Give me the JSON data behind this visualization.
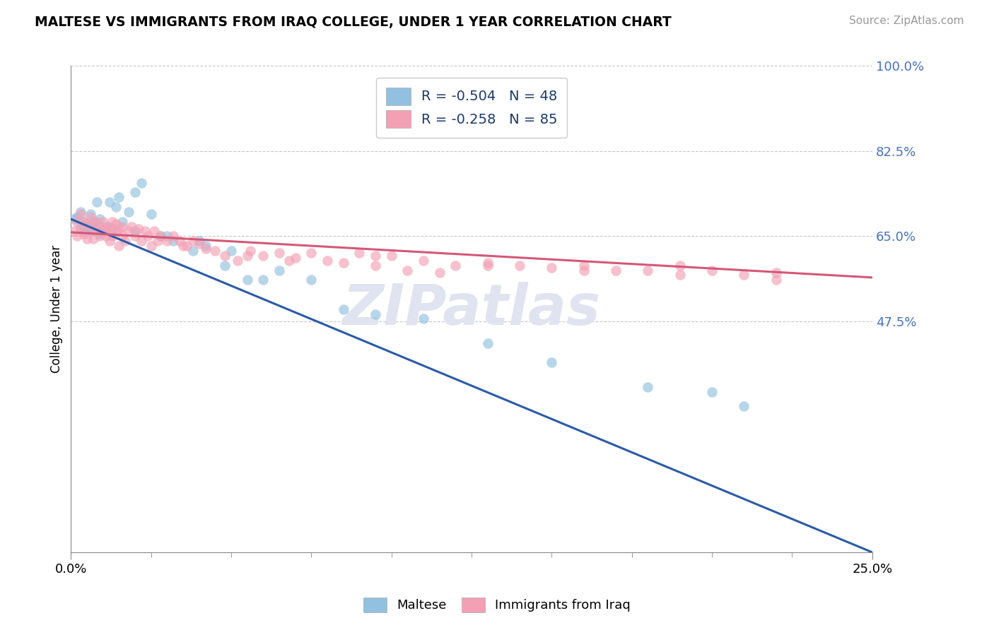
{
  "title": "MALTESE VS IMMIGRANTS FROM IRAQ COLLEGE, UNDER 1 YEAR CORRELATION CHART",
  "source_text": "Source: ZipAtlas.com",
  "ylabel_label": "College, Under 1 year",
  "xmin": 0.0,
  "xmax": 0.25,
  "ymin": 0.0,
  "ymax": 1.0,
  "ytick_vals": [
    1.0,
    0.825,
    0.65,
    0.475
  ],
  "ytick_labels": [
    "100.0%",
    "82.5%",
    "65.0%",
    "47.5%"
  ],
  "ytick_color": "#4472C4",
  "xtick_labels": [
    "0.0%",
    "25.0%"
  ],
  "xtick_vals": [
    0.0,
    0.25
  ],
  "blue_color": "#92C0E0",
  "pink_color": "#F4A0B4",
  "blue_line_color": "#2B5BA8",
  "pink_line_color": "#D45878",
  "blue_line_x": [
    0.0,
    0.25
  ],
  "blue_line_y": [
    0.685,
    0.0
  ],
  "pink_line_x": [
    0.0,
    0.25
  ],
  "pink_line_y": [
    0.658,
    0.565
  ],
  "watermark": "ZIPatlas",
  "legend1_label": "R = -0.504   N = 48",
  "legend2_label": "R = -0.258   N = 85",
  "legend_text_color": "#1A3A6B",
  "bottom_label1": "Maltese",
  "bottom_label2": "Immigrants from Iraq",
  "blue_scatter_x": [
    0.001,
    0.002,
    0.003,
    0.003,
    0.004,
    0.004,
    0.005,
    0.005,
    0.006,
    0.006,
    0.007,
    0.007,
    0.008,
    0.008,
    0.009,
    0.009,
    0.01,
    0.011,
    0.012,
    0.013,
    0.014,
    0.015,
    0.016,
    0.018,
    0.02,
    0.022,
    0.025,
    0.028,
    0.032,
    0.038,
    0.042,
    0.048,
    0.055,
    0.06,
    0.065,
    0.075,
    0.085,
    0.095,
    0.11,
    0.13,
    0.15,
    0.18,
    0.2,
    0.21,
    0.05,
    0.04,
    0.03,
    0.02
  ],
  "blue_scatter_y": [
    0.685,
    0.69,
    0.67,
    0.7,
    0.66,
    0.68,
    0.665,
    0.675,
    0.66,
    0.695,
    0.67,
    0.68,
    0.665,
    0.72,
    0.655,
    0.685,
    0.66,
    0.67,
    0.72,
    0.665,
    0.71,
    0.73,
    0.68,
    0.7,
    0.74,
    0.76,
    0.695,
    0.65,
    0.64,
    0.62,
    0.63,
    0.59,
    0.56,
    0.56,
    0.58,
    0.56,
    0.5,
    0.49,
    0.48,
    0.43,
    0.39,
    0.34,
    0.33,
    0.3,
    0.62,
    0.64,
    0.65,
    0.66
  ],
  "pink_scatter_x": [
    0.001,
    0.002,
    0.002,
    0.003,
    0.003,
    0.004,
    0.004,
    0.005,
    0.005,
    0.006,
    0.006,
    0.007,
    0.007,
    0.008,
    0.008,
    0.009,
    0.009,
    0.01,
    0.01,
    0.011,
    0.011,
    0.012,
    0.012,
    0.013,
    0.013,
    0.014,
    0.014,
    0.015,
    0.015,
    0.016,
    0.016,
    0.017,
    0.018,
    0.019,
    0.02,
    0.021,
    0.022,
    0.023,
    0.024,
    0.025,
    0.026,
    0.027,
    0.028,
    0.03,
    0.032,
    0.034,
    0.036,
    0.038,
    0.04,
    0.042,
    0.045,
    0.048,
    0.052,
    0.056,
    0.06,
    0.065,
    0.07,
    0.075,
    0.08,
    0.09,
    0.1,
    0.11,
    0.12,
    0.13,
    0.14,
    0.15,
    0.16,
    0.17,
    0.18,
    0.19,
    0.2,
    0.21,
    0.22,
    0.035,
    0.055,
    0.068,
    0.085,
    0.095,
    0.105,
    0.115,
    0.095,
    0.13,
    0.16,
    0.19,
    0.22
  ],
  "pink_scatter_y": [
    0.66,
    0.65,
    0.68,
    0.665,
    0.695,
    0.655,
    0.68,
    0.645,
    0.675,
    0.66,
    0.69,
    0.645,
    0.675,
    0.66,
    0.68,
    0.65,
    0.67,
    0.66,
    0.68,
    0.65,
    0.665,
    0.67,
    0.64,
    0.68,
    0.65,
    0.66,
    0.675,
    0.63,
    0.665,
    0.65,
    0.67,
    0.64,
    0.66,
    0.67,
    0.65,
    0.665,
    0.64,
    0.66,
    0.65,
    0.63,
    0.66,
    0.64,
    0.65,
    0.64,
    0.65,
    0.64,
    0.63,
    0.64,
    0.635,
    0.625,
    0.62,
    0.61,
    0.6,
    0.62,
    0.61,
    0.615,
    0.605,
    0.615,
    0.6,
    0.615,
    0.61,
    0.6,
    0.59,
    0.595,
    0.59,
    0.585,
    0.59,
    0.58,
    0.58,
    0.59,
    0.58,
    0.57,
    0.575,
    0.63,
    0.61,
    0.6,
    0.595,
    0.59,
    0.58,
    0.575,
    0.61,
    0.59,
    0.58,
    0.57,
    0.56
  ],
  "grid_color": "#C8C8C8",
  "grid_linestyle": "--"
}
